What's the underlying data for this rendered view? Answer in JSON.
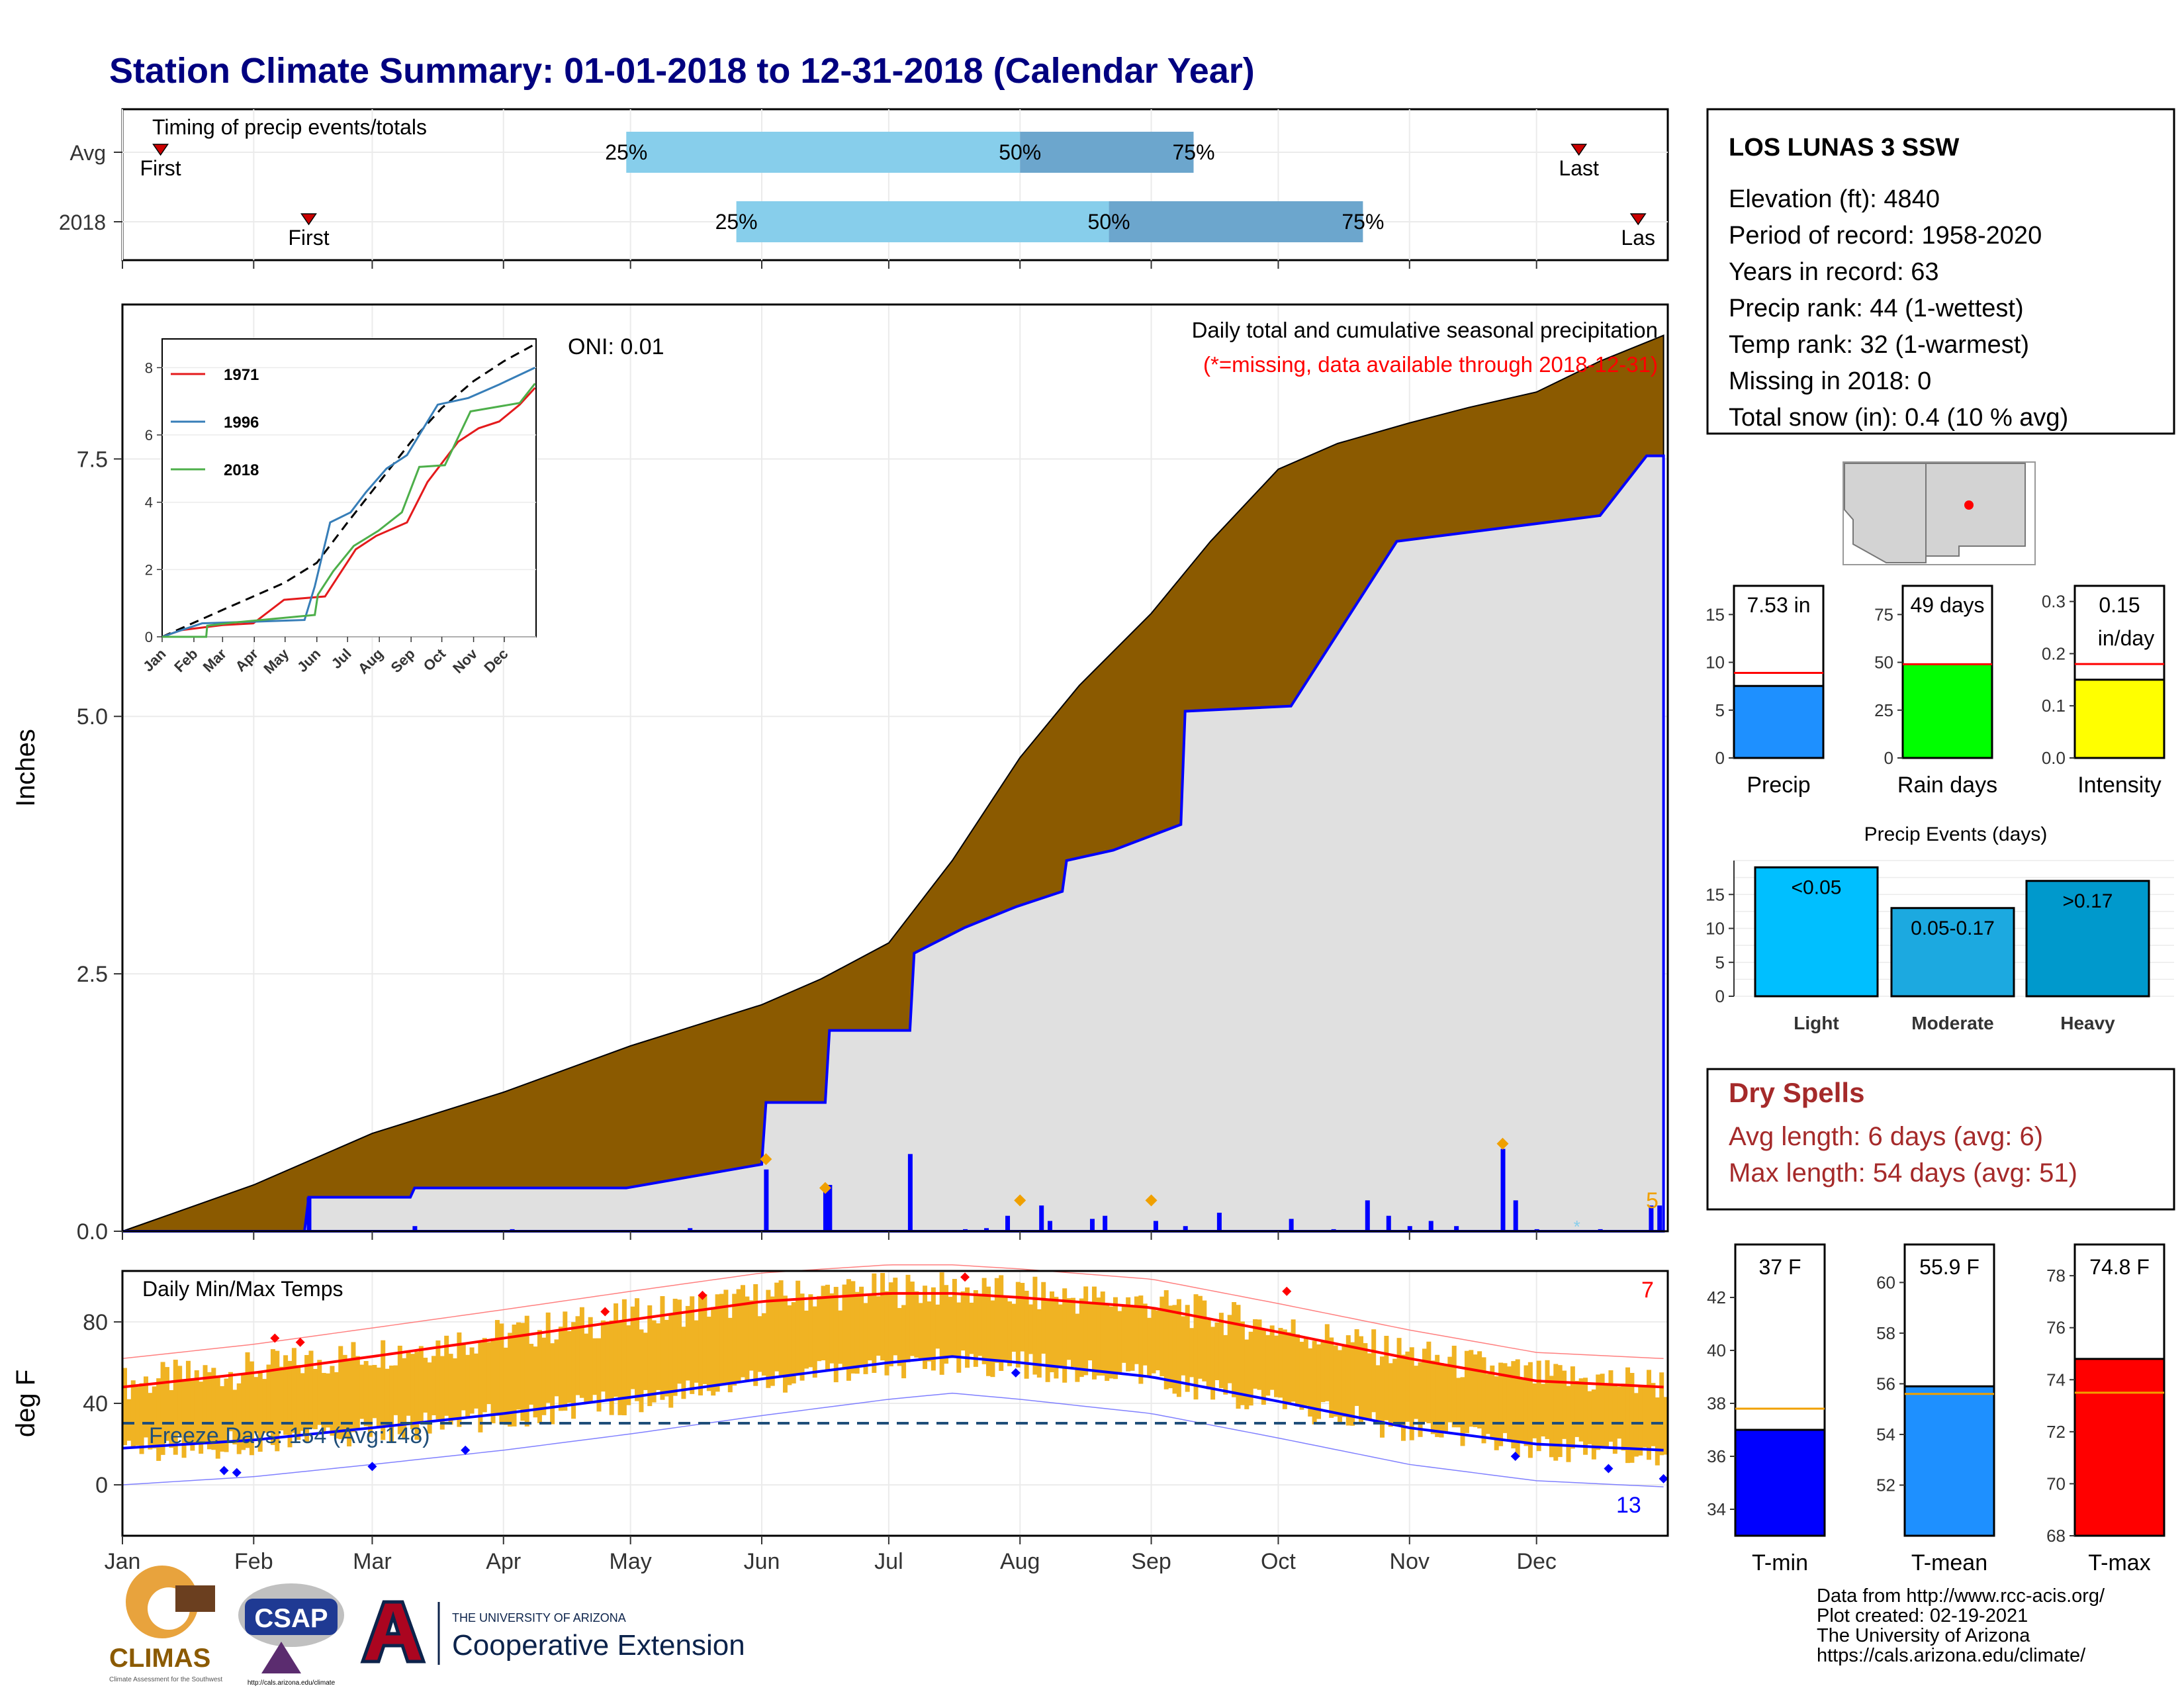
{
  "title": "Station Climate Summary: 01-01-2018 to 12-31-2018 (Calendar Year)",
  "months": [
    "Jan",
    "Feb",
    "Mar",
    "Apr",
    "May",
    "Jun",
    "Jul",
    "Aug",
    "Sep",
    "Oct",
    "Nov",
    "Dec"
  ],
  "colors": {
    "title": "#000080",
    "precip_fill": "#8B5A00",
    "obs_fill": "#E0E0E0",
    "obs_line": "#0000FF",
    "light_blue": "#87CEEB",
    "mid_blue": "#6CA6CD",
    "temp_bars": "#F0B323",
    "tmax_line": "#FF0000",
    "tmin_line": "#0000FF",
    "dry_spell": "#A52A2A"
  },
  "timing": {
    "title": "Timing of precip events/totals",
    "rows": [
      {
        "label": "Avg",
        "first_doy": 10,
        "last_doy": 345,
        "p25": 120,
        "p50": 213,
        "p75": 254,
        "first_label": "First",
        "last_label": "Last",
        "p25_label": "25%",
        "p50_label": "50%",
        "p75_label": "75%"
      },
      {
        "label": "2018",
        "first_doy": 45,
        "last_doy": 359,
        "p25": 146,
        "p50": 234,
        "p75": 294,
        "first_label": "First",
        "last_label": "Las",
        "p25_label": "25%",
        "p50_label": "50%",
        "p75_label": "75%"
      }
    ]
  },
  "precip_panel": {
    "ylabel": "Inches",
    "yticks": [
      "0.0",
      "2.5",
      "5.0",
      "7.5"
    ],
    "oni": "ONI: 0.01",
    "caption": "Daily total and cumulative seasonal precipitation",
    "missing_note": "(*=missing, data available through 2018-12-31)",
    "corner_count": "5"
  },
  "inset": {
    "yticks": [
      "0",
      "2",
      "4",
      "6",
      "8"
    ],
    "months": [
      "Jan",
      "Feb",
      "Mar",
      "Apr",
      "May",
      "Jun",
      "Jul",
      "Aug",
      "Sep",
      "Oct",
      "Nov",
      "Dec"
    ],
    "legend": [
      "1971",
      "1996",
      "2018"
    ]
  },
  "temp_panel": {
    "ylabel": "deg F",
    "yticks": [
      "0",
      "40",
      "80"
    ],
    "title": "Daily Min/Max Temps",
    "freeze_label": "Freeze Days: 154 (Avg:148)",
    "max_count": "7",
    "min_count": "13"
  },
  "station": {
    "name": "LOS LUNAS 3 SSW",
    "lines": [
      "Elevation (ft): 4840",
      "Period of record: 1958-2020",
      "Years in record: 63",
      "Precip rank: 44 (1-wettest)",
      "Temp rank: 32 (1-warmest)",
      "Missing in 2018: 0",
      "Total snow (in): 0.4 (10 % avg)"
    ]
  },
  "mini_bars": [
    {
      "label": "Precip",
      "value": 7.53,
      "avg": 8.9,
      "ymax": 18,
      "ticks": [
        "0",
        "5",
        "10",
        "15"
      ],
      "tick_vals": [
        0,
        5,
        10,
        15
      ],
      "text": "7.53 in",
      "text2": "",
      "color": "#1E90FF"
    },
    {
      "label": "Rain days",
      "value": 49,
      "avg": 49,
      "ymax": 90,
      "ticks": [
        "0",
        "25",
        "50",
        "75"
      ],
      "tick_vals": [
        0,
        25,
        50,
        75
      ],
      "text": "49 days",
      "text2": "",
      "color": "#00FF00"
    },
    {
      "label": "Intensity",
      "value": 0.15,
      "avg": 0.18,
      "ymax": 0.33,
      "ticks": [
        "0.0",
        "0.1",
        "0.2",
        "0.3"
      ],
      "tick_vals": [
        0,
        0.1,
        0.2,
        0.3
      ],
      "text": "0.15",
      "text2": "in/day",
      "color": "#FFFF00"
    }
  ],
  "events": {
    "title": "Precip Events (days)",
    "ticks": [
      "0",
      "5",
      "10",
      "15"
    ],
    "bars": [
      {
        "label": "Light",
        "value": 19,
        "text": "<0.05",
        "color": "#00BFFF"
      },
      {
        "label": "Moderate",
        "value": 13,
        "text": "0.05-0.17",
        "color": "#1CA9E0"
      },
      {
        "label": "Heavy",
        "value": 17,
        "text": ">0.17",
        "color": "#0099CC"
      }
    ]
  },
  "dry_spells": {
    "title": "Dry Spells",
    "avg_length": "Avg length: 6 days (avg: 6)",
    "max_length": "Max length: 54 days (avg: 51)"
  },
  "temp_bars": [
    {
      "label": "T-min",
      "value": 37,
      "avg": 37.8,
      "ymin": 33,
      "ymax": 44,
      "ticks": [
        "34",
        "36",
        "38",
        "40",
        "42"
      ],
      "tick_vals": [
        34,
        36,
        38,
        40,
        42
      ],
      "text": "37 F",
      "color": "#0000FF"
    },
    {
      "label": "T-mean",
      "value": 55.9,
      "avg": 55.6,
      "ymin": 50,
      "ymax": 61.5,
      "ticks": [
        "52",
        "54",
        "56",
        "58",
        "60"
      ],
      "tick_vals": [
        52,
        54,
        56,
        58,
        60
      ],
      "text": "55.9 F",
      "color": "#1E90FF"
    },
    {
      "label": "T-max",
      "value": 74.8,
      "avg": 73.5,
      "ymin": 68,
      "ymax": 79.2,
      "ticks": [
        "68",
        "70",
        "72",
        "74",
        "76",
        "78"
      ],
      "tick_vals": [
        68,
        70,
        72,
        74,
        76,
        78
      ],
      "text": "74.8 F",
      "color": "#FF0000"
    }
  ],
  "credits": [
    "Data from http://www.rcc-acis.org/",
    "Plot created: 02-19-2021",
    "The University of Arizona",
    "https://cals.arizona.edu/climate/"
  ],
  "logos": {
    "climas": "CLIMAS",
    "climas_sub": "Climate Assessment for the Southwest",
    "csap": "CSAP",
    "csap_url": "http://cals.arizona.edu/climate",
    "ua_small": "THE UNIVERSITY OF ARIZONA",
    "ua_big": "Cooperative Extension"
  },
  "chart_data": [
    {
      "type": "area",
      "title": "Daily total and cumulative seasonal precipitation",
      "ylabel": "Inches",
      "ylim": [
        0,
        8.7
      ],
      "series": [
        {
          "name": "",
          "x_doy": [
            1,
            32,
            60,
            91,
            121,
            152,
            166,
            182,
            197,
            213,
            227,
            244,
            258,
            274,
            288,
            305,
            319,
            335,
            350,
            365
          ],
          "values": [
            0,
            0.45,
            0.95,
            1.35,
            1.8,
            2.2,
            2.45,
            2.8,
            3.6,
            4.6,
            5.3,
            6.0,
            6.7,
            7.4,
            7.65,
            7.85,
            8.0,
            8.15,
            8.45,
            8.7
          ]
        },
        {
          "name": "",
          "x_doy": [
            1,
            44,
            45,
            69,
            70,
            120,
            152,
            153,
            167,
            168,
            187,
            188,
            200,
            212,
            223,
            224,
            235,
            251,
            252,
            277,
            302,
            350,
            361,
            365
          ],
          "values": [
            0,
            0,
            0.33,
            0.33,
            0.42,
            0.42,
            0.65,
            1.25,
            1.25,
            1.95,
            1.95,
            2.7,
            2.95,
            3.15,
            3.3,
            3.6,
            3.7,
            3.95,
            5.05,
            5.1,
            6.7,
            6.95,
            7.53,
            7.53
          ]
        }
      ]
    },
    {
      "type": "line",
      "ylabel": "deg F",
      "ylim": [
        -25,
        105
      ],
      "series": [
        {
          "name": "",
          "x_doy": [
            1,
            32,
            60,
            91,
            121,
            152,
            182,
            197,
            213,
            244,
            274,
            305,
            335,
            365
          ],
          "values": [
            48,
            55,
            63,
            72,
            81,
            90,
            94,
            94,
            92,
            87,
            75,
            62,
            51,
            48
          ]
        },
        {
          "name": "",
          "x_doy": [
            1,
            32,
            60,
            91,
            121,
            152,
            182,
            197,
            213,
            244,
            274,
            305,
            335,
            365
          ],
          "values": [
            18,
            22,
            28,
            35,
            43,
            52,
            60,
            63,
            60,
            53,
            41,
            28,
            20,
            17
          ]
        }
      ]
    }
  ]
}
